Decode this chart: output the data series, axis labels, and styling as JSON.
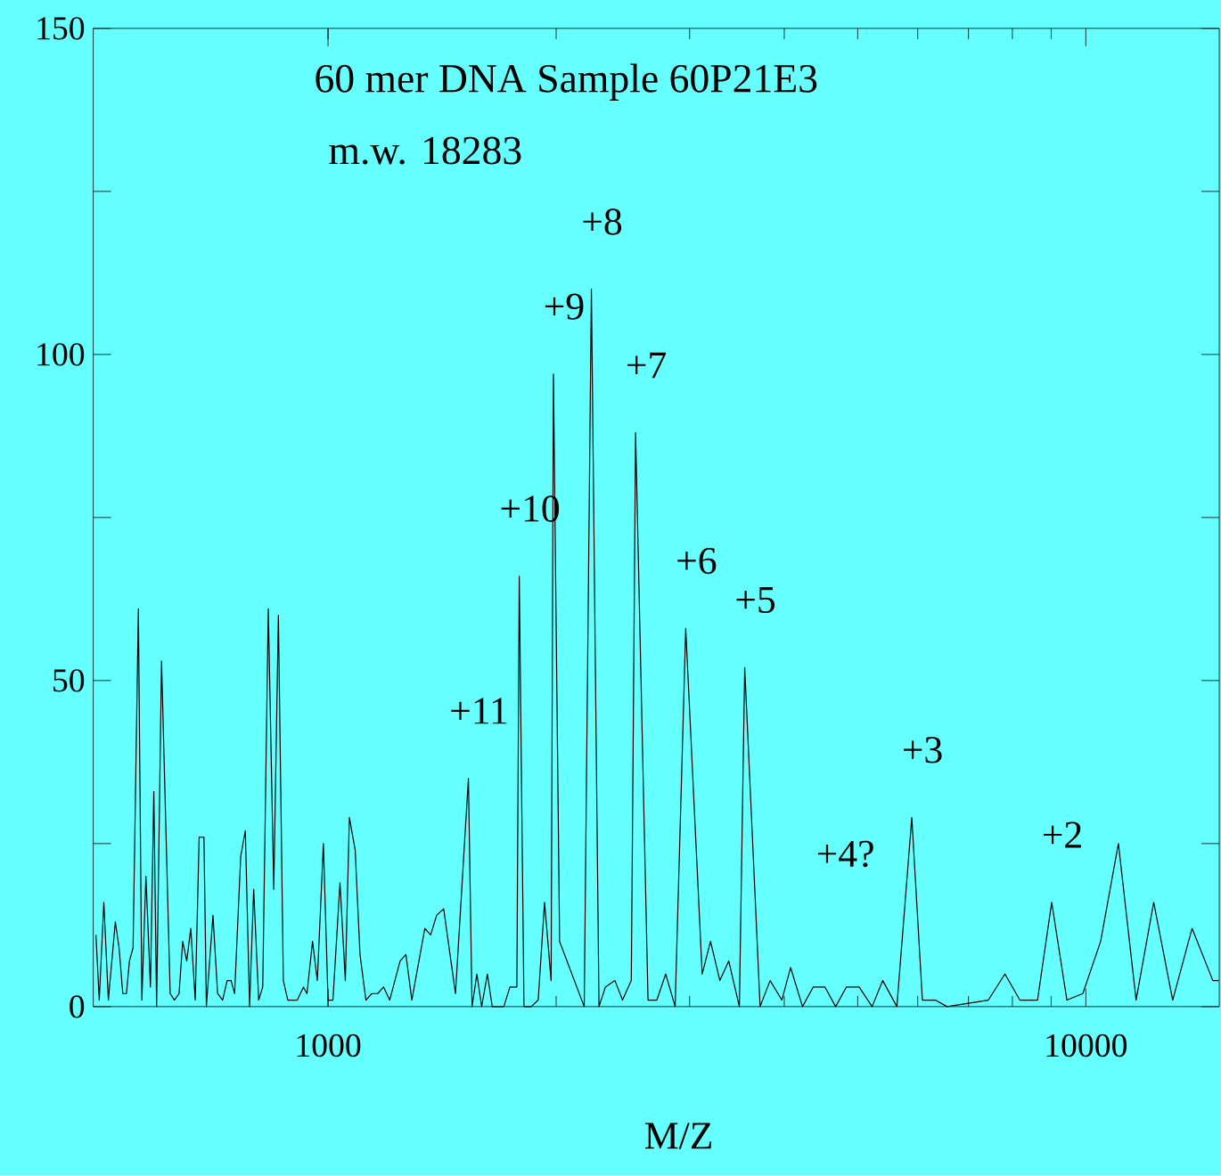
{
  "chart_data": {
    "type": "line",
    "title": "60 mer DNA Sample 60P21E3",
    "subtitle": "m.w. 18283",
    "xlabel": "M/Z",
    "log": "x",
    "color": "#000000",
    "x": [
      494,
      499,
      506,
      513,
      524,
      530,
      536,
      542,
      547,
      553,
      562,
      568,
      575,
      583,
      589,
      594,
      603,
      619,
      627,
      636,
      643,
      651,
      659,
      668,
      676,
      686,
      691,
      705,
      715,
      726,
      736,
      745,
      753,
      767,
      778,
      788,
      798,
      810,
      820,
      834,
      848,
      860,
      873,
      885,
      897,
      911,
      928,
      938,
      954,
      968,
      986,
      1000,
      1015,
      1037,
      1054,
      1067,
      1086,
      1102,
      1122,
      1142,
      1163,
      1184,
      1206,
      1245,
      1267,
      1290,
      1342,
      1366,
      1391,
      1421,
      1473,
      1532,
      1549,
      1572,
      1595,
      1623,
      1647,
      1706,
      1738,
      1775,
      1788,
      1814,
      1854,
      1894,
      1931,
      1970,
      1984,
      2021,
      2178,
      2226,
      2278,
      2323,
      2391,
      2447,
      2513,
      2546,
      2644,
      2716,
      2790,
      2871,
      2965,
      3117,
      3197,
      3289,
      3379,
      3490,
      3547,
      3717,
      3832,
      3971,
      4078,
      4228,
      4367,
      4527,
      4676,
      4830,
      5022,
      5224,
      5395,
      5632,
      5893,
      6086,
      6330,
      6561,
      7437,
      7822,
      8184,
      8635,
      9015,
      9441,
      9909,
      10460,
      11040,
      11650,
      12290,
      13020,
      13810,
      14710,
      14970
    ],
    "values": [
      11,
      1,
      16,
      1,
      13,
      9,
      2,
      2,
      7,
      9,
      61,
      1,
      20,
      3,
      33,
      0,
      53,
      2,
      1,
      2,
      10,
      7,
      12,
      1,
      26,
      26,
      0,
      14,
      2,
      1,
      4,
      4,
      2,
      23,
      27,
      0,
      18,
      1,
      3,
      61,
      18,
      60,
      4,
      1,
      1,
      1,
      3,
      2,
      10,
      4,
      25,
      1,
      1,
      19,
      4,
      29,
      24,
      8,
      1,
      2,
      2,
      3,
      1,
      7,
      8,
      1,
      12,
      11,
      14,
      15,
      2,
      35,
      0,
      5,
      0,
      5,
      0,
      0,
      3,
      3,
      66,
      0,
      0,
      1,
      16,
      4,
      97,
      10,
      0,
      110,
      0,
      3,
      4,
      1,
      4,
      88,
      1,
      1,
      5,
      0,
      58,
      5,
      10,
      4,
      7,
      0,
      52,
      0,
      4,
      1,
      6,
      0,
      3,
      3,
      0,
      3,
      3,
      0,
      4,
      0,
      29,
      1,
      1,
      0,
      1,
      5,
      1,
      1,
      16,
      1,
      2,
      10,
      25,
      1,
      16,
      1,
      12,
      4,
      4
    ],
    "xlim": [
      490,
      15000
    ],
    "ylim": [
      0,
      150
    ],
    "xticks": [
      1000,
      10000
    ],
    "yticks": [
      0,
      {
        "value": 25,
        "label": null
      },
      50,
      {
        "value": 75,
        "label": null
      },
      100,
      {
        "value": 125,
        "label": null
      },
      150
    ],
    "annotations": [
      {
        "text": "+8",
        "x": 2226,
        "y": 110
      },
      {
        "text": "+9",
        "x": 1984,
        "y": 97
      },
      {
        "text": "+7",
        "x": 2546,
        "y": 88
      },
      {
        "text": "+10",
        "x": 1788,
        "y": 66
      },
      {
        "text": "+6",
        "x": 2965,
        "y": 58
      },
      {
        "text": "+5",
        "x": 3547,
        "y": 52
      },
      {
        "text": "+11",
        "x": 1532,
        "y": 35
      },
      "+4?",
      {
        "text": "+3",
        "x": 5893,
        "y": 29
      },
      {
        "text": "+2",
        "x": 9015,
        "y": 16
      }
    ]
  }
}
